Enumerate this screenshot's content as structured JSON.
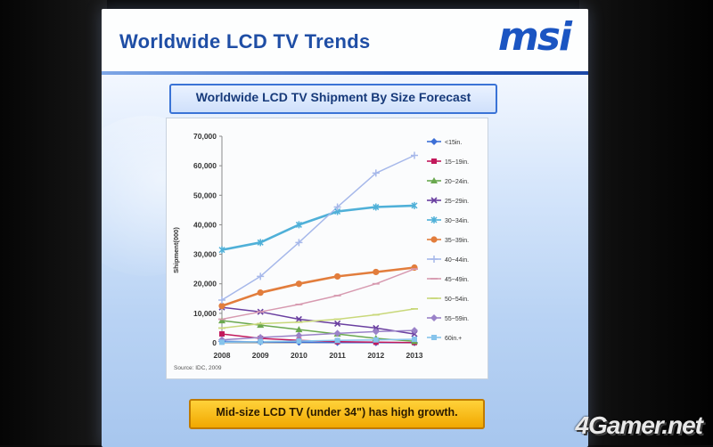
{
  "slide": {
    "title": "Worldwide LCD TV Trends",
    "logo": "msi",
    "bottom_note": "Mid-size LCD TV (under 34\") has high growth."
  },
  "watermark": "4Gamer.net",
  "chart_data": {
    "type": "line",
    "title": "Worldwide LCD TV Shipment By Size Forecast",
    "xlabel": "",
    "ylabel": "Shipment(000)",
    "source": "Source: IDC, 2009",
    "x": [
      "2008",
      "2009",
      "2010",
      "2011",
      "2012",
      "2013"
    ],
    "ylim": [
      0,
      70000
    ],
    "yticks": [
      "0",
      "10,000",
      "20,000",
      "30,000",
      "40,000",
      "50,000",
      "60,000",
      "70,000"
    ],
    "legend_position": "right",
    "series": [
      {
        "name": "<15in.",
        "color": "#3d6fd6",
        "marker": "diamond",
        "values": [
          500,
          300,
          200,
          100,
          50,
          30
        ]
      },
      {
        "name": "15~19in.",
        "color": "#c2185b",
        "marker": "square",
        "values": [
          3000,
          1500,
          800,
          400,
          200,
          100
        ]
      },
      {
        "name": "20~24in.",
        "color": "#6aa84f",
        "marker": "triangle",
        "values": [
          7500,
          6000,
          4500,
          3000,
          1500,
          500
        ]
      },
      {
        "name": "25~29in.",
        "color": "#6a3fa0",
        "marker": "x",
        "values": [
          12000,
          10500,
          8000,
          6500,
          5000,
          3000
        ]
      },
      {
        "name": "30~34in.",
        "color": "#4fb0d8",
        "marker": "star",
        "values": [
          31500,
          34000,
          40000,
          44500,
          46000,
          46500
        ]
      },
      {
        "name": "35~39in.",
        "color": "#e27d3c",
        "marker": "circle",
        "values": [
          12500,
          17000,
          20000,
          22500,
          24000,
          25500
        ]
      },
      {
        "name": "40~44in.",
        "color": "#a6b8ea",
        "marker": "plus",
        "values": [
          14500,
          22500,
          34000,
          46000,
          57500,
          63500
        ]
      },
      {
        "name": "45~49in.",
        "color": "#d79ab0",
        "marker": "dash",
        "values": [
          8000,
          10500,
          13000,
          16000,
          20000,
          25000
        ]
      },
      {
        "name": "50~54in.",
        "color": "#c9d87a",
        "marker": "dash",
        "values": [
          5000,
          6500,
          7000,
          8000,
          9500,
          11500
        ]
      },
      {
        "name": "55~59in.",
        "color": "#9a82c8",
        "marker": "diamond",
        "values": [
          1000,
          1800,
          2500,
          3200,
          3800,
          4200
        ]
      },
      {
        "name": "60in.+",
        "color": "#86c4ec",
        "marker": "square",
        "values": [
          200,
          400,
          600,
          800,
          1000,
          1200
        ]
      }
    ]
  }
}
